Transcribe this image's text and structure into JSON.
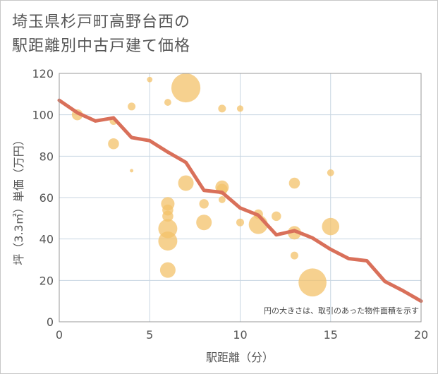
{
  "chart_data": {
    "type": "scatter",
    "title_lines": [
      "埼玉県杉戸町高野台西の",
      "駅距離別中古戸建て価格"
    ],
    "xlabel": "駅距離（分）",
    "ylabel": "坪（3.3㎡）単価（万円）",
    "xlim": [
      0,
      20
    ],
    "ylim": [
      0,
      120
    ],
    "x_ticks": [
      0,
      5,
      10,
      15,
      20
    ],
    "y_ticks": [
      0,
      20,
      40,
      60,
      80,
      100,
      120
    ],
    "grid": true,
    "note": "円の大きさは、取引のあった物件面積を示す",
    "colors": {
      "bubble": "#f3c26a",
      "trend": "#d9705a",
      "grid": "#c8d6e2",
      "axis": "#555555"
    },
    "points": [
      {
        "x": 1,
        "y": 100,
        "size": 2
      },
      {
        "x": 3,
        "y": 97,
        "size": 1
      },
      {
        "x": 3,
        "y": 86,
        "size": 2
      },
      {
        "x": 4,
        "y": 104,
        "size": 1
      },
      {
        "x": 4,
        "y": 73,
        "size": 0.2
      },
      {
        "x": 5,
        "y": 117,
        "size": 0.5
      },
      {
        "x": 6,
        "y": 106,
        "size": 0.8
      },
      {
        "x": 6,
        "y": 57,
        "size": 3
      },
      {
        "x": 6,
        "y": 54,
        "size": 2
      },
      {
        "x": 6,
        "y": 51,
        "size": 2
      },
      {
        "x": 6,
        "y": 45,
        "size": 6
      },
      {
        "x": 6,
        "y": 39,
        "size": 6
      },
      {
        "x": 6,
        "y": 25,
        "size": 4
      },
      {
        "x": 7,
        "y": 113,
        "size": 14
      },
      {
        "x": 7,
        "y": 67,
        "size": 4
      },
      {
        "x": 8,
        "y": 57,
        "size": 1.5
      },
      {
        "x": 8,
        "y": 48,
        "size": 4
      },
      {
        "x": 9,
        "y": 103,
        "size": 1
      },
      {
        "x": 9,
        "y": 65,
        "size": 3
      },
      {
        "x": 9,
        "y": 64,
        "size": 2
      },
      {
        "x": 9,
        "y": 59,
        "size": 0.8
      },
      {
        "x": 10,
        "y": 103,
        "size": 0.7
      },
      {
        "x": 10,
        "y": 48,
        "size": 1
      },
      {
        "x": 11,
        "y": 52,
        "size": 1.5
      },
      {
        "x": 11,
        "y": 47,
        "size": 6
      },
      {
        "x": 12,
        "y": 51,
        "size": 1.5
      },
      {
        "x": 13,
        "y": 67,
        "size": 2
      },
      {
        "x": 13,
        "y": 43,
        "size": 3
      },
      {
        "x": 13,
        "y": 32,
        "size": 1
      },
      {
        "x": 14,
        "y": 19,
        "size": 13
      },
      {
        "x": 15,
        "y": 72,
        "size": 0.8
      },
      {
        "x": 15,
        "y": 46,
        "size": 5
      }
    ],
    "trend": {
      "x": [
        0,
        1,
        2,
        3,
        4,
        5,
        6,
        7,
        8,
        9,
        10,
        11,
        12,
        13,
        14,
        15,
        16,
        17,
        18,
        19,
        20
      ],
      "y": [
        107,
        101,
        97,
        98.5,
        89,
        87.5,
        82,
        77,
        63.5,
        62.5,
        55,
        51.5,
        42,
        44,
        40.5,
        35,
        30.5,
        29.5,
        19.5,
        15,
        10
      ]
    }
  }
}
